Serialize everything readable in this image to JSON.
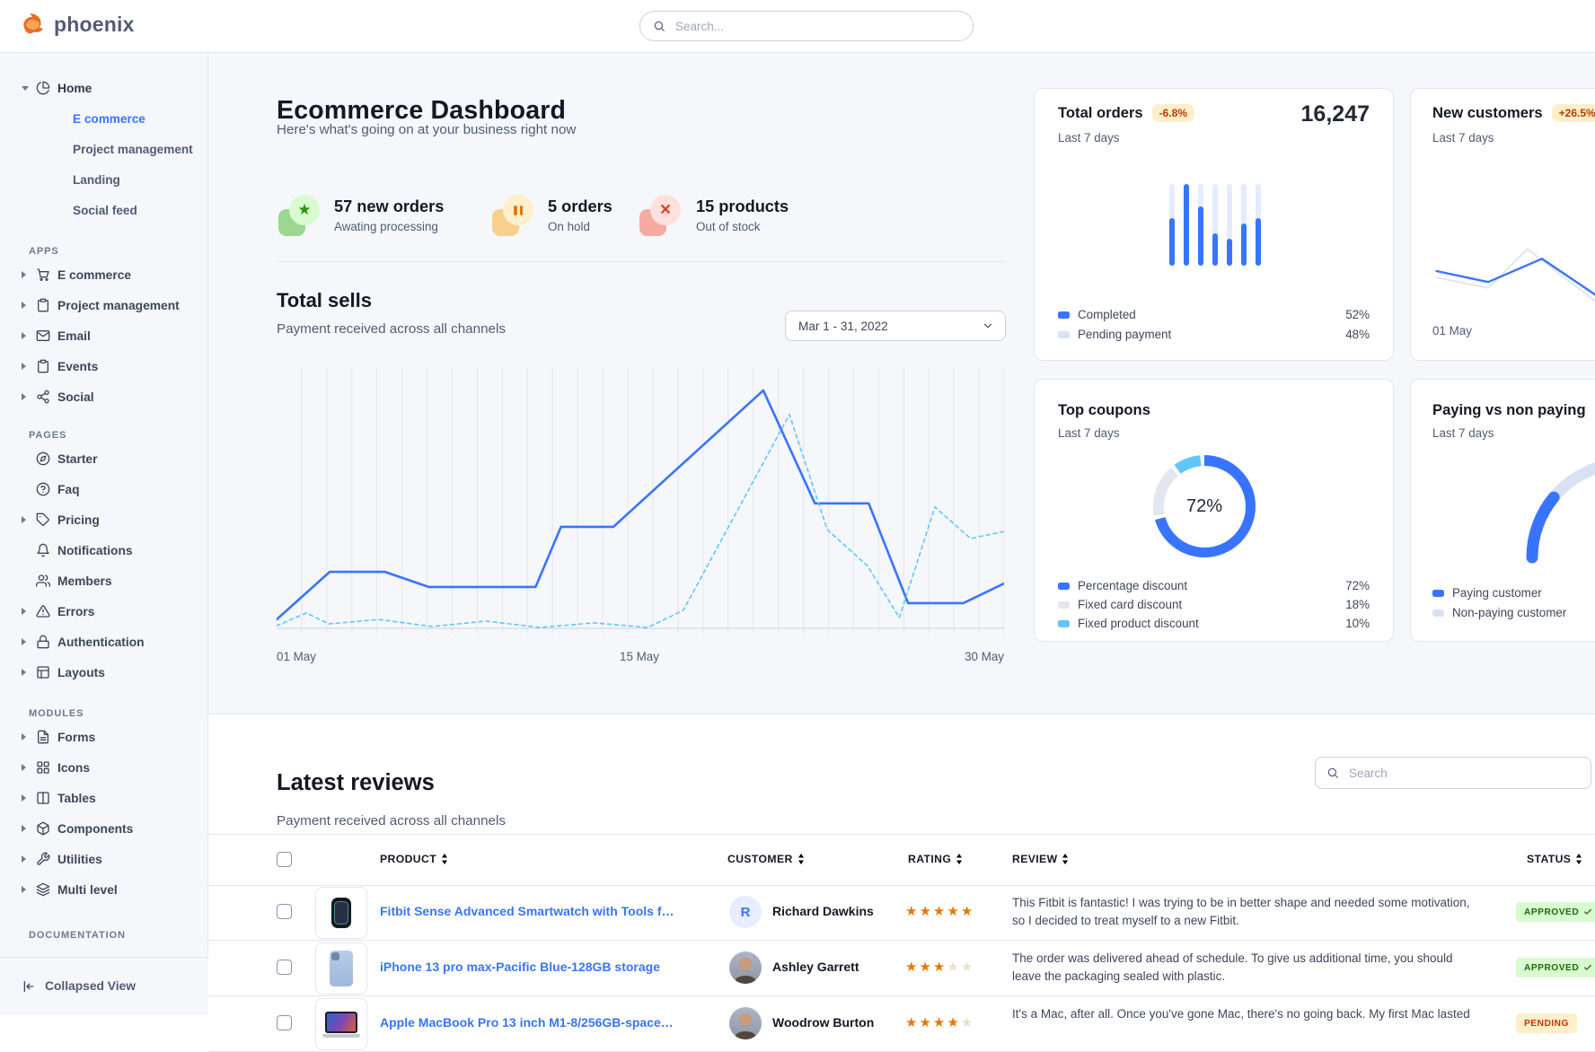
{
  "navbar": {
    "brand": "phoenix",
    "search_placeholder": "Search...",
    "logo_color": "#e5780b"
  },
  "sidebar": {
    "home": {
      "label": "Home",
      "icon": "pie-chart-icon",
      "items": [
        {
          "label": "E commerce",
          "active": true
        },
        {
          "label": "Project management",
          "active": false
        },
        {
          "label": "Landing",
          "active": false
        },
        {
          "label": "Social feed",
          "active": false
        }
      ]
    },
    "sections": [
      {
        "title": "APPS",
        "items": [
          {
            "label": "E commerce",
            "icon": "cart-icon",
            "caret": true
          },
          {
            "label": "Project management",
            "icon": "clipboard-icon",
            "caret": true
          },
          {
            "label": "Email",
            "icon": "mail-icon",
            "caret": true
          },
          {
            "label": "Events",
            "icon": "clipboard-icon",
            "caret": true
          },
          {
            "label": "Social",
            "icon": "share-icon",
            "caret": true
          }
        ]
      },
      {
        "title": "PAGES",
        "items": [
          {
            "label": "Starter",
            "icon": "compass-icon",
            "caret": false
          },
          {
            "label": "Faq",
            "icon": "help-circle-icon",
            "caret": false
          },
          {
            "label": "Pricing",
            "icon": "tag-icon",
            "caret": true
          },
          {
            "label": "Notifications",
            "icon": "bell-icon",
            "caret": false
          },
          {
            "label": "Members",
            "icon": "users-icon",
            "caret": false
          },
          {
            "label": "Errors",
            "icon": "alert-triangle-icon",
            "caret": true
          },
          {
            "label": "Authentication",
            "icon": "lock-icon",
            "caret": true
          },
          {
            "label": "Layouts",
            "icon": "layout-icon",
            "caret": true
          }
        ]
      },
      {
        "title": "MODULES",
        "items": [
          {
            "label": "Forms",
            "icon": "file-text-icon",
            "caret": true
          },
          {
            "label": "Icons",
            "icon": "grid-icon",
            "caret": true
          },
          {
            "label": "Tables",
            "icon": "columns-icon",
            "caret": true
          },
          {
            "label": "Components",
            "icon": "box-icon",
            "caret": true
          },
          {
            "label": "Utilities",
            "icon": "wrench-icon",
            "caret": true
          },
          {
            "label": "Multi level",
            "icon": "layers-icon",
            "caret": true
          }
        ]
      },
      {
        "title": "DOCUMENTATION",
        "items": []
      }
    ],
    "footer": {
      "label": "Collapsed View",
      "icon": "collapse-left-icon"
    }
  },
  "hero": {
    "title": "Ecommerce Dashboard",
    "subtitle": "Here's what's going on at your business right now",
    "stats": [
      {
        "value": "57 new orders",
        "caption": "Awating processing",
        "icon": "star-icon",
        "color": "green"
      },
      {
        "value": "5 orders",
        "caption": "On hold",
        "icon": "pause-icon",
        "color": "orange"
      },
      {
        "value": "15 products",
        "caption": "Out of stock",
        "icon": "x-icon",
        "color": "red"
      }
    ]
  },
  "total_sells": {
    "title": "Total sells",
    "subtitle": "Payment received across all channels",
    "date_range": "Mar 1 - 31, 2022",
    "x_ticks": [
      "01 May",
      "15 May",
      "30 May"
    ]
  },
  "cards": {
    "total_orders": {
      "title": "Total orders",
      "badge": "-6.8%",
      "period": "Last 7 days",
      "value": "16,247",
      "legend": [
        {
          "label": "Completed",
          "value": "52%"
        },
        {
          "label": "Pending payment",
          "value": "48%"
        }
      ]
    },
    "new_customers": {
      "title": "New customers",
      "badge": "+26.5%",
      "period": "Last 7 days",
      "x_tick": "01 May"
    },
    "top_coupons": {
      "title": "Top coupons",
      "period": "Last 7 days",
      "center_label": "72%",
      "legend": [
        {
          "label": "Percentage discount",
          "value": "72%"
        },
        {
          "label": "Fixed card discount",
          "value": "18%"
        },
        {
          "label": "Fixed product discount",
          "value": "10%"
        }
      ]
    },
    "paying": {
      "title": "Paying vs non paying",
      "period": "Last 7 days",
      "legend": [
        {
          "label": "Paying customer"
        },
        {
          "label": "Non-paying customer"
        }
      ]
    }
  },
  "reviews": {
    "title": "Latest reviews",
    "subtitle": "Payment received across all channels",
    "search_placeholder": "Search",
    "columns": [
      "PRODUCT",
      "CUSTOMER",
      "RATING",
      "REVIEW",
      "STATUS"
    ],
    "rows": [
      {
        "product": "Fitbit Sense Advanced Smartwatch with Tools fo...",
        "product_image": "smartwatch",
        "customer": "Richard Dawkins",
        "avatar": "R",
        "avatar_type": "initial",
        "rating": 5,
        "review": "This Fitbit is fantastic! I was trying to be in better shape and needed some motivation, so I decided to treat myself to a new Fitbit.",
        "status": "APPROVED",
        "status_type": "success"
      },
      {
        "product": "iPhone 13 pro max-Pacific Blue-128GB storage",
        "product_image": "iphone",
        "customer": "Ashley Garrett",
        "avatar": "A",
        "avatar_type": "photo",
        "rating": 3,
        "review": "The order was delivered ahead of schedule. To give us additional time, you should leave the packaging sealed with plastic.",
        "status": "APPROVED",
        "status_type": "success"
      },
      {
        "product": "Apple MacBook Pro 13 inch M1-8/256GB-space gray",
        "product_image": "macbook",
        "customer": "Woodrow Burton",
        "avatar": "W",
        "avatar_type": "photo",
        "rating": 4,
        "review": "It's a Mac, after all. Once you've gone Mac, there's no going back. My first Mac lasted",
        "status": "PENDING",
        "status_type": "warning"
      }
    ]
  },
  "chart_data": [
    {
      "id": "total_sells",
      "type": "line",
      "title": "Total sells",
      "x_ticks": [
        "01 May",
        "15 May",
        "30 May"
      ],
      "gridlines": 29,
      "grid_color": "#e3e6ed",
      "note": "values estimated as percent of plot box (no numeric axis shown)",
      "series": [
        {
          "name": "current period",
          "style": "solid",
          "color": "#3874ff",
          "width": 2.6,
          "points_pct": [
            [
              0,
              96.6
            ],
            [
              7.3,
              78.3
            ],
            [
              14.9,
              78.3
            ],
            [
              20.9,
              84.1
            ],
            [
              35.6,
              84.1
            ],
            [
              39.1,
              61
            ],
            [
              46.3,
              61
            ],
            [
              66.9,
              8.6
            ],
            [
              74,
              52
            ],
            [
              81.4,
              52
            ],
            [
              86.8,
              90.3
            ],
            [
              94.4,
              90.3
            ],
            [
              100,
              82.8
            ]
          ]
        },
        {
          "name": "previous period",
          "style": "dashed",
          "color": "#60c6ff",
          "width": 1.6,
          "points_pct": [
            [
              0,
              99
            ],
            [
              4.1,
              94.1
            ],
            [
              7.2,
              98.3
            ],
            [
              14,
              96.6
            ],
            [
              21.4,
              99.3
            ],
            [
              28.8,
              97.2
            ],
            [
              36.2,
              99.7
            ],
            [
              43.6,
              97.9
            ],
            [
              51,
              99.7
            ],
            [
              55.9,
              93.1
            ],
            [
              70.5,
              17.9
            ],
            [
              75.7,
              62.1
            ],
            [
              81.2,
              75.9
            ],
            [
              85.6,
              95.9
            ],
            [
              90.5,
              53.4
            ],
            [
              95.4,
              65.5
            ],
            [
              100,
              62.8
            ]
          ]
        }
      ]
    },
    {
      "id": "total_orders",
      "type": "bar",
      "title": "Total orders (last 7 days)",
      "values_pct": [
        58,
        100,
        73,
        40,
        33,
        52,
        58
      ],
      "colors": {
        "fill": "#3874ff",
        "track": "#e4ecfd"
      },
      "legend": [
        {
          "label": "Completed",
          "value": 52
        },
        {
          "label": "Pending payment",
          "value": 48
        }
      ]
    },
    {
      "id": "new_customers",
      "type": "line",
      "title": "New customers (last 7 days)",
      "series": [
        {
          "name": "previous",
          "style": "solid",
          "color": "#e3e6ed",
          "width": 2,
          "points_pct": [
            [
              2,
              53
            ],
            [
              27,
              69
            ],
            [
              46,
              9
            ],
            [
              79,
              90
            ],
            [
              100,
              99
            ]
          ]
        },
        {
          "name": "current",
          "style": "solid",
          "color": "#3874ff",
          "width": 2.4,
          "points_pct": [
            [
              2,
              43
            ],
            [
              27,
              60
            ],
            [
              53,
              24
            ],
            [
              79,
              80
            ],
            [
              100,
              95
            ]
          ]
        }
      ]
    },
    {
      "id": "top_coupons",
      "type": "donut",
      "center_label": "72%",
      "segments": [
        {
          "label": "Percentage discount",
          "value": 72,
          "color": "#3874ff"
        },
        {
          "label": "Fixed card discount",
          "value": 18,
          "color": "#e1e6ef"
        },
        {
          "label": "Fixed product discount",
          "value": 10,
          "color": "#60c6ff"
        }
      ]
    },
    {
      "id": "paying_gauge",
      "type": "half-donut",
      "segments": [
        {
          "label": "Paying customer",
          "value": 22,
          "color": "#3874ff"
        },
        {
          "label": "Non-paying customer",
          "value": 78,
          "color": "#d9e2f5"
        }
      ]
    }
  ],
  "colors": {
    "primary": "#3874ff",
    "sky": "#60c6ff",
    "body_bg": "#f5f7fa",
    "border": "#e3e6ed",
    "success_bg": "#d9fbd0",
    "success_text": "#1c6c09",
    "warning_bg": "#ffefca",
    "warning_text": "#bc3803",
    "star": "#e5780b",
    "text_dark": "#141824",
    "text_muted": "#525b75"
  }
}
